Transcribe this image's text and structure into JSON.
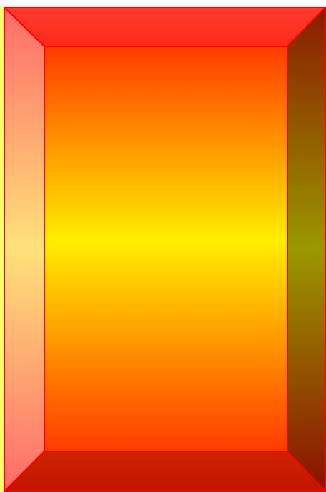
{
  "frame": {
    "colors": {
      "border": "#ff0000",
      "top_bevel": "#ff3b30",
      "bottom_bevel": "#cc1c00",
      "left_bevel_edge": "#ff6a6a",
      "left_bevel_mid": "#ffe27a",
      "right_bevel_edge": "#8a0f00",
      "right_bevel_mid": "#9a9800",
      "center_top": "#ff3a00",
      "center_mid": "#ffee00",
      "center_bottom": "#ff3a00"
    }
  },
  "center_text": {
    "value": "",
    "color": "#ff0000"
  }
}
